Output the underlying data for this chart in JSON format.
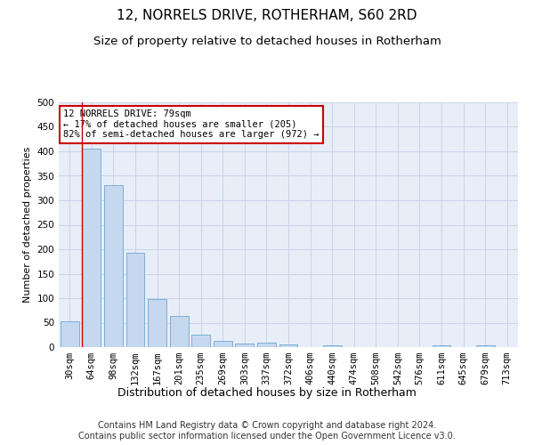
{
  "title": "12, NORRELS DRIVE, ROTHERHAM, S60 2RD",
  "subtitle": "Size of property relative to detached houses in Rotherham",
  "xlabel": "Distribution of detached houses by size in Rotherham",
  "ylabel": "Number of detached properties",
  "footer_line1": "Contains HM Land Registry data © Crown copyright and database right 2024.",
  "footer_line2": "Contains public sector information licensed under the Open Government Licence v3.0.",
  "bin_labels": [
    "30sqm",
    "64sqm",
    "98sqm",
    "132sqm",
    "167sqm",
    "201sqm",
    "235sqm",
    "269sqm",
    "303sqm",
    "337sqm",
    "372sqm",
    "406sqm",
    "440sqm",
    "474sqm",
    "508sqm",
    "542sqm",
    "576sqm",
    "611sqm",
    "645sqm",
    "679sqm",
    "713sqm"
  ],
  "bar_values": [
    52,
    406,
    330,
    193,
    99,
    64,
    25,
    13,
    8,
    9,
    5,
    0,
    3,
    0,
    0,
    0,
    0,
    3,
    0,
    3,
    0
  ],
  "bar_color": "#c5d8f0",
  "bar_edge_color": "#7bafd4",
  "vline_bin_index": 1,
  "vline_color": "#cc0000",
  "annotation_text": "12 NORRELS DRIVE: 79sqm\n← 17% of detached houses are smaller (205)\n82% of semi-detached houses are larger (972) →",
  "annotation_box_facecolor": "#ffffff",
  "annotation_box_edgecolor": "#cc0000",
  "ylim": [
    0,
    500
  ],
  "yticks": [
    0,
    50,
    100,
    150,
    200,
    250,
    300,
    350,
    400,
    450,
    500
  ],
  "grid_color": "#c8d4e8",
  "plot_bg_color": "#e8eef8",
  "title_fontsize": 11,
  "subtitle_fontsize": 9.5,
  "tick_fontsize": 7.5,
  "ylabel_fontsize": 8,
  "xlabel_fontsize": 9,
  "annotation_fontsize": 7.5,
  "footer_fontsize": 7
}
